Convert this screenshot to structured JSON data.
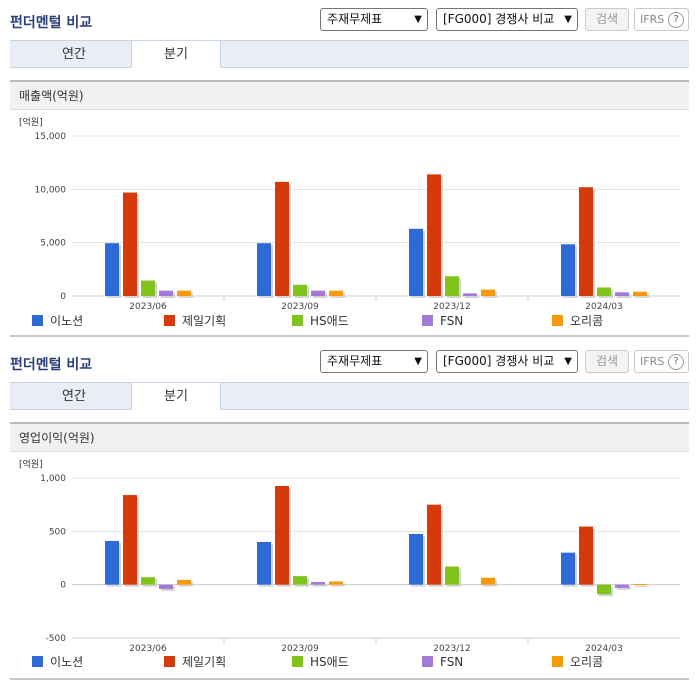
{
  "panels": [
    {
      "title": "펀더멘털 비교",
      "select_type": "주재무제표",
      "select_group": "[FG000] 경쟁사 비교",
      "search_label": "검색",
      "ifrs_label": "IFRS",
      "help_glyph": "?",
      "tabs": [
        {
          "label": "연간"
        },
        {
          "label": "분기"
        }
      ],
      "active_tab": "분기",
      "section_title": "매출액(억원)"
    },
    {
      "title": "펀더멘털 비교",
      "select_type": "주재무제표",
      "select_group": "[FG000] 경쟁사 비교",
      "search_label": "검색",
      "ifrs_label": "IFRS",
      "help_glyph": "?",
      "tabs": [
        {
          "label": "연간"
        },
        {
          "label": "분기"
        }
      ],
      "active_tab": "분기",
      "section_title": "영업이익(억원)"
    }
  ],
  "chart_data": [
    {
      "type": "bar",
      "title": "매출액(억원)",
      "unit_label": "[억원]",
      "categories": [
        "2023/06",
        "2023/09",
        "2023/12",
        "2024/03"
      ],
      "ylim": [
        0,
        15000
      ],
      "yticks": [
        "0",
        "5,000",
        "10,000",
        "15,000"
      ],
      "ytick_values": [
        0,
        5000,
        10000,
        15000
      ],
      "grid": true,
      "legend_position": "bottom",
      "series": [
        {
          "name": "이노션",
          "color": "#2d6ad6",
          "values": [
            4950,
            4950,
            6300,
            4850
          ]
        },
        {
          "name": "제일기획",
          "color": "#d63a0a",
          "values": [
            9700,
            10700,
            11400,
            10200
          ]
        },
        {
          "name": "HS애드",
          "color": "#7fc31c",
          "values": [
            1450,
            1050,
            1850,
            800
          ]
        },
        {
          "name": "FSN",
          "color": "#a37bd6",
          "values": [
            500,
            500,
            250,
            350
          ]
        },
        {
          "name": "오리콤",
          "color": "#f59a0a",
          "values": [
            500,
            500,
            600,
            400
          ]
        }
      ]
    },
    {
      "type": "bar",
      "title": "영업이익(억원)",
      "unit_label": "[억원]",
      "categories": [
        "2023/06",
        "2023/09",
        "2023/12",
        "2024/03"
      ],
      "ylim": [
        -500,
        1000
      ],
      "yticks": [
        "-500",
        "0",
        "500",
        "1,000"
      ],
      "ytick_values": [
        -500,
        0,
        500,
        1000
      ],
      "grid": true,
      "legend_position": "bottom",
      "series": [
        {
          "name": "이노션",
          "color": "#2d6ad6",
          "values": [
            410,
            400,
            475,
            300
          ]
        },
        {
          "name": "제일기획",
          "color": "#d63a0a",
          "values": [
            840,
            925,
            750,
            545
          ]
        },
        {
          "name": "HS애드",
          "color": "#7fc31c",
          "values": [
            70,
            80,
            170,
            -90
          ]
        },
        {
          "name": "FSN",
          "color": "#a37bd6",
          "values": [
            -40,
            25,
            0,
            -30
          ]
        },
        {
          "name": "오리콤",
          "color": "#f59a0a",
          "values": [
            45,
            30,
            65,
            5
          ]
        }
      ]
    }
  ]
}
